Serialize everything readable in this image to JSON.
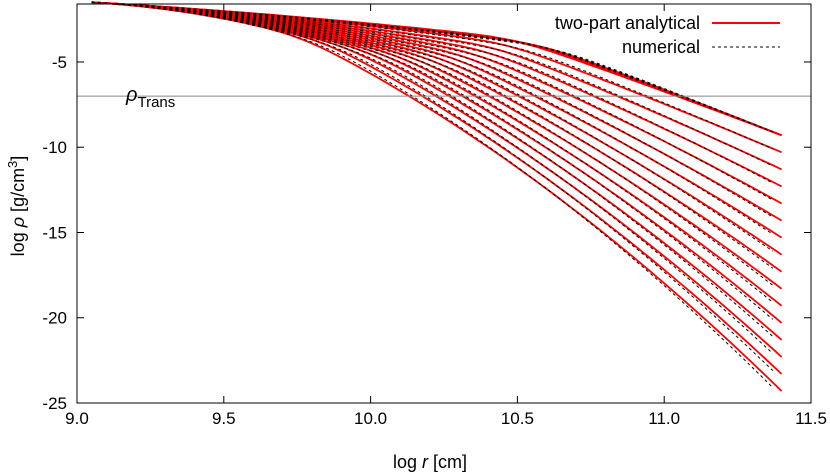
{
  "chart_data": {
    "type": "line",
    "xlabel_prefix": "log",
    "xlabel_symbol": "r",
    "xlabel_unit": "[cm]",
    "ylabel_prefix": "log",
    "ylabel_symbol": "ρ",
    "ylabel_unit_base": "[g/cm",
    "ylabel_unit_exp": "3",
    "ylabel_unit_close": "]",
    "xlim": [
      9.0,
      11.5
    ],
    "ylim": [
      -25,
      -1.6
    ],
    "x_ticks": [
      9.0,
      9.5,
      10.0,
      10.5,
      11.0,
      11.5
    ],
    "x_tick_labels": [
      "9.0",
      "9.5",
      "10.0",
      "10.5",
      "11.0",
      "11.5"
    ],
    "y_ticks": [
      -5,
      -10,
      -15,
      -20,
      -25
    ],
    "y_tick_labels": [
      "-5",
      "-10",
      "-15",
      "-20",
      "-25"
    ],
    "grid": false,
    "legend_position": "top-right",
    "legend": [
      {
        "label": "two-part analytical",
        "color": "#ff0000",
        "style": "solid"
      },
      {
        "label": "numerical",
        "color": "#000000",
        "style": "dashed"
      }
    ],
    "transition_line": {
      "y": -7.0,
      "label_symbol": "ρ",
      "label_sub": "Trans",
      "color": "#888888"
    },
    "curve_family": {
      "count": 19,
      "x_start": 9.05,
      "x_end": 11.4,
      "y_start": -1.5,
      "inner_slope": -5.0,
      "outer_slope": -1.0,
      "knee_x": [
        9.76,
        9.84,
        9.92,
        9.99,
        10.05,
        10.1,
        10.15,
        10.2,
        10.24,
        10.28,
        10.32,
        10.36,
        10.4,
        10.43,
        10.46,
        10.49,
        10.52,
        10.55,
        10.58
      ],
      "end_y": [
        -24.3,
        -23.3,
        -22.3,
        -21.3,
        -20.3,
        -19.3,
        -18.3,
        -17.3,
        -16.3,
        -15.3,
        -14.3,
        -13.3,
        -12.3,
        -11.3,
        -10.3,
        -9.3,
        -9.3,
        -9.3,
        -9.3
      ]
    }
  }
}
